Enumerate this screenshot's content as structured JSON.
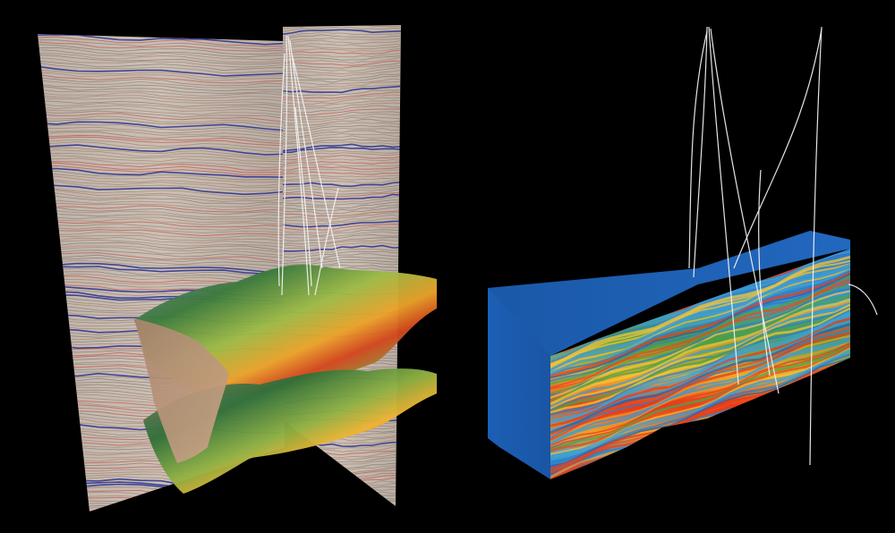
{
  "scene": {
    "background_color": "#000000",
    "panels": [
      {
        "id": "left",
        "content": "seismic-crossline-panels-with-horizon-surfaces-and-well-paths"
      },
      {
        "id": "right",
        "content": "seismic-volume-block-with-well-paths"
      }
    ],
    "palette": {
      "seismic_panel_base": "#c9beb4",
      "seismic_trough": "#2a2f8c",
      "seismic_peak": "#7a3a1a",
      "horizon_low": "#2f6b3a",
      "horizon_mid": "#9bb64a",
      "horizon_high": "#e88a1c",
      "horizon_peak": "#d4361c",
      "volume_top": "#1d5fb0",
      "volume_layers_hot": "#e53a1a",
      "volume_layers_warm": "#f2c12e",
      "well_path": "#f2f2f2"
    }
  }
}
